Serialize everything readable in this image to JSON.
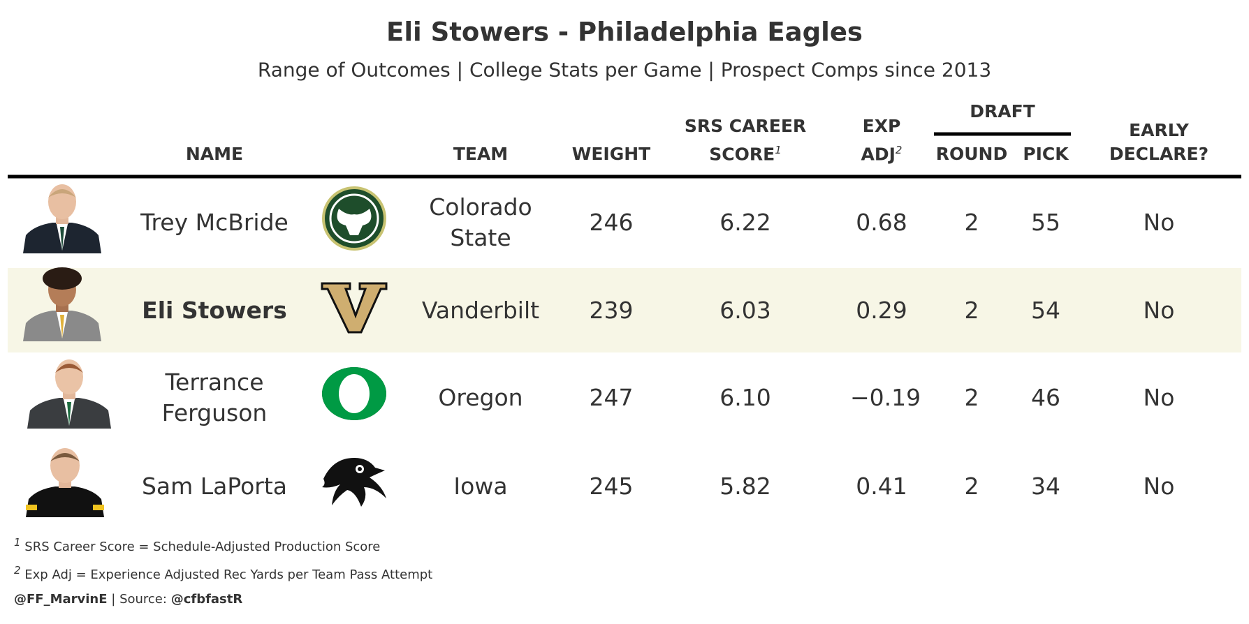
{
  "header": {
    "title": "Eli Stowers - Philadelphia Eagles",
    "subtitle": "Range of Outcomes | College Stats per Game | Prospect Comps since 2013"
  },
  "table": {
    "column_group": "DRAFT",
    "columns": [
      {
        "label": "NAME"
      },
      {
        "label": "TEAM"
      },
      {
        "label": "WEIGHT"
      },
      {
        "label": "SRS CAREER SCORE",
        "note": "1"
      },
      {
        "label": "EXP ADJ",
        "note": "2"
      },
      {
        "label": "ROUND"
      },
      {
        "label": "PICK"
      },
      {
        "label": "EARLY DECLARE?"
      }
    ],
    "rows": [
      [
        "Trey McBride",
        "Colorado State",
        "246",
        "6.22",
        "0.68",
        "2",
        "55",
        "No"
      ],
      [
        "Eli Stowers",
        "Vanderbilt",
        "239",
        "6.03",
        "0.29",
        "2",
        "54",
        "No"
      ],
      [
        "Terrance Ferguson",
        "Oregon",
        "247",
        "6.10",
        "−0.19",
        "2",
        "46",
        "No"
      ],
      [
        "Sam LaPorta",
        "Iowa",
        "245",
        "5.82",
        "0.41",
        "2",
        "34",
        "No"
      ]
    ],
    "highlight_row": 1
  },
  "footnotes": [
    {
      "marker": "1",
      "text": "SRS Career Score = Schedule-Adjusted Production Score"
    },
    {
      "marker": "2",
      "text": "Exp Adj = Experience Adjusted Rec Yards per Team Pass Attempt"
    }
  ],
  "credit": {
    "handle": "@FF_MarvinE",
    "source_label": "Source:",
    "source": "@cfbfastR"
  }
}
